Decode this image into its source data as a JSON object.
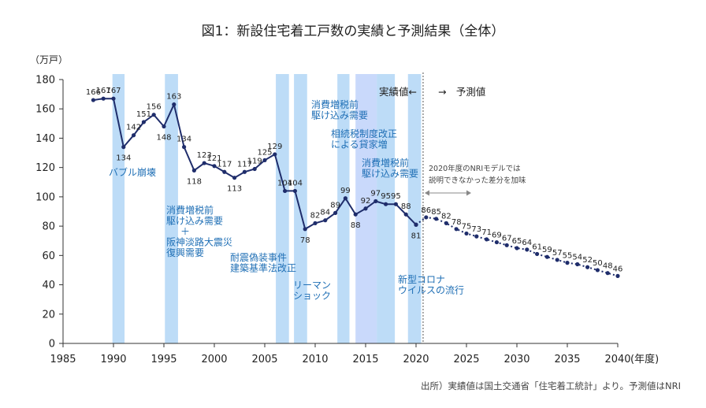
{
  "chart_data": {
    "type": "line",
    "title": "図1：新設住宅着工戸数の実績と予測結果（全体）",
    "ylabel": "（万戸）",
    "xlabel": "(年度)",
    "xlim": [
      1985,
      2040
    ],
    "ylim": [
      0,
      180
    ],
    "x_ticks": [
      "1985",
      "1990",
      "1995",
      "2000",
      "2005",
      "2010",
      "2015",
      "2020",
      "2025",
      "2030",
      "2035",
      "2040"
    ],
    "y_ticks": [
      "0",
      "20",
      "40",
      "60",
      "80",
      "100",
      "120",
      "140",
      "160",
      "180"
    ],
    "grid": false,
    "series": [
      {
        "name": "実績値",
        "color": "#1f2d6b",
        "style": "solid",
        "x": [
          1988,
          1989,
          1990,
          1991,
          1992,
          1993,
          1994,
          1995,
          1996,
          1997,
          1998,
          1999,
          2000,
          2001,
          2002,
          2003,
          2004,
          2005,
          2006,
          2007,
          2008,
          2009,
          2010,
          2011,
          2012,
          2013,
          2014,
          2015,
          2016,
          2017,
          2018,
          2019,
          2020
        ],
        "values": [
          166,
          167,
          167,
          134,
          142,
          151,
          156,
          148,
          163,
          134,
          118,
          123,
          121,
          117,
          113,
          117,
          119,
          125,
          129,
          104,
          104,
          78,
          82,
          84,
          89,
          99,
          88,
          92,
          97,
          95,
          95,
          88,
          81
        ],
        "labels": [
          "166",
          "167",
          "167",
          "134",
          "142",
          "151",
          "156",
          "148",
          "163",
          "134",
          "118",
          "123",
          "121",
          "117",
          "113",
          "117",
          "119",
          "125",
          "129",
          "104",
          "104",
          "78",
          "82",
          "84",
          "89",
          "99",
          "88",
          "92",
          "97",
          "95",
          "95",
          "88",
          "81"
        ]
      },
      {
        "name": "予測値",
        "color": "#1f2d6b",
        "style": "dotted",
        "x": [
          2020,
          2021,
          2022,
          2023,
          2024,
          2025,
          2026,
          2027,
          2028,
          2029,
          2030,
          2031,
          2032,
          2033,
          2034,
          2035,
          2036,
          2037,
          2038,
          2039,
          2040
        ],
        "values": [
          81,
          86,
          85,
          82,
          78,
          75,
          73,
          71,
          69,
          67,
          65,
          64,
          61,
          59,
          57,
          55,
          54,
          52,
          50,
          48,
          46
        ],
        "labels": [
          "",
          "86",
          "85",
          "82",
          "78",
          "75",
          "73",
          "71",
          "69",
          "67",
          "65",
          "64",
          "61",
          "59",
          "57",
          "55",
          "54",
          "52",
          "50",
          "48",
          "46"
        ]
      }
    ],
    "shaded_periods": [
      {
        "from": 1989.9,
        "to": 1991.1,
        "label_lines": [
          "バブル崩壊"
        ]
      },
      {
        "from": 1995.1,
        "to": 1996.4,
        "label_lines": [
          "消費増税前",
          "駆け込み需要",
          "＋",
          "阪神淡路大震災",
          "復興需要"
        ]
      },
      {
        "from": 2006.1,
        "to": 2007.4,
        "label_lines": [
          "耐震偽装事件",
          "建築基準法改正"
        ]
      },
      {
        "from": 2007.9,
        "to": 2009.2,
        "label_lines": [
          "リーマン",
          "ショック"
        ]
      },
      {
        "from": 2012.2,
        "to": 2013.4,
        "label_lines": [
          "消費増税前",
          "駆け込み需要"
        ]
      },
      {
        "from": 2014.0,
        "to": 2016.1,
        "label_lines": [
          "相続税制度改正",
          "による貸家増"
        ]
      },
      {
        "from": 2016.1,
        "to": 2017.9,
        "label_lines": [
          "消費増税前",
          "駆け込み需要"
        ]
      },
      {
        "from": 2019.2,
        "to": 2020.5,
        "label_lines": [
          "新型コロナ",
          "ウイルスの流行"
        ]
      }
    ],
    "divider_x": 2020.7,
    "divider_labels": {
      "left": "実績値←",
      "right": "→　予測値"
    },
    "model_note": [
      "2020年度のNRIモデルでは",
      "説明できなかった差分を加味"
    ],
    "source": "出所）実績値は国土交通省「住宅着工統計」より。予測値はNRI"
  }
}
